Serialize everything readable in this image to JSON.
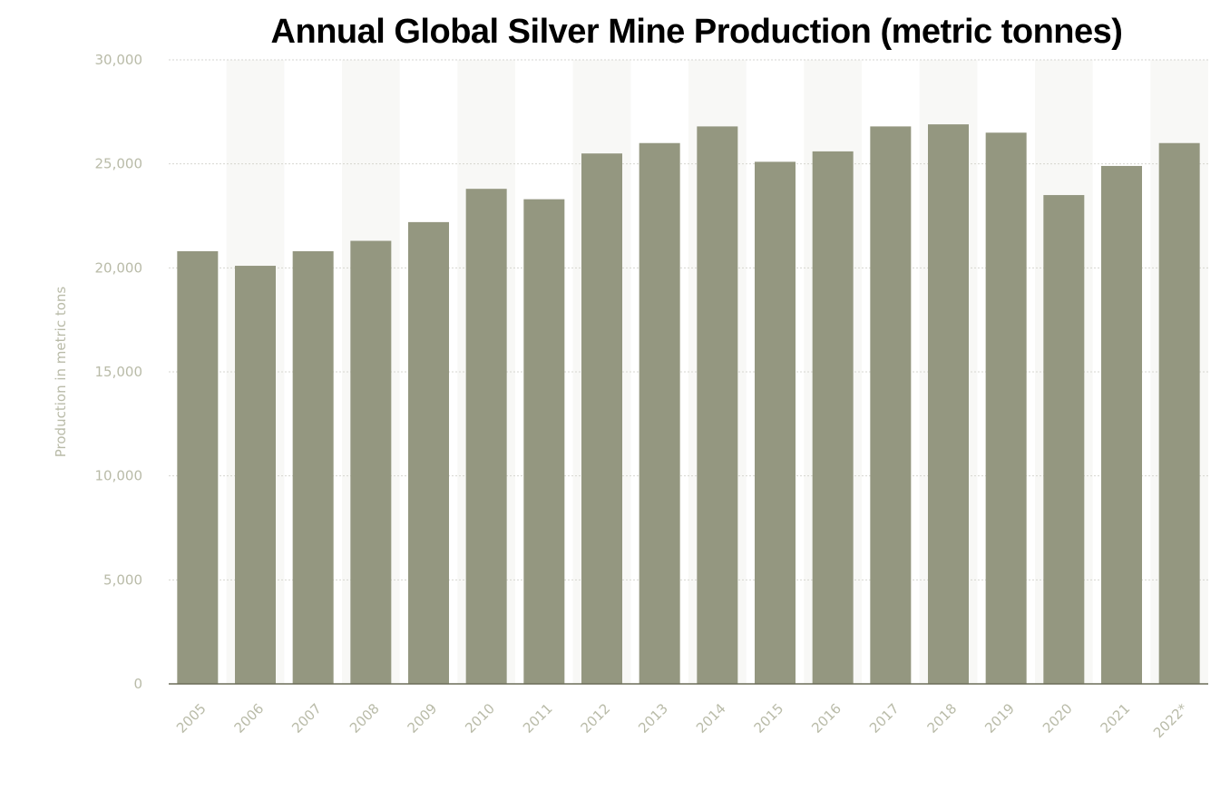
{
  "chart_data": {
    "type": "bar",
    "title": "Annual Global Silver Mine Production (metric tonnes)",
    "xlabel": "",
    "ylabel": "Production in metric tons",
    "categories": [
      "2005",
      "2006",
      "2007",
      "2008",
      "2009",
      "2010",
      "2011",
      "2012",
      "2013",
      "2014",
      "2015",
      "2016",
      "2017",
      "2018",
      "2019",
      "2020",
      "2021",
      "2022*"
    ],
    "values": [
      20800,
      20100,
      20800,
      21300,
      22200,
      23800,
      23300,
      25500,
      26000,
      26800,
      25100,
      25600,
      26800,
      26900,
      26500,
      23500,
      24900,
      26000
    ],
    "ylim": [
      0,
      30000
    ],
    "yticks": [
      0,
      5000,
      10000,
      15000,
      20000,
      25000,
      30000
    ],
    "ytick_labels": [
      "0",
      "5,000",
      "10,000",
      "15,000",
      "20,000",
      "25,000",
      "30,000"
    ],
    "grid": true,
    "legend": "none",
    "colors": {
      "bar": "#949780",
      "band": "#f8f8f6",
      "tick_text": "#b9bba8",
      "grid": "#d6d6d0",
      "axis": "#6b6d58"
    }
  }
}
